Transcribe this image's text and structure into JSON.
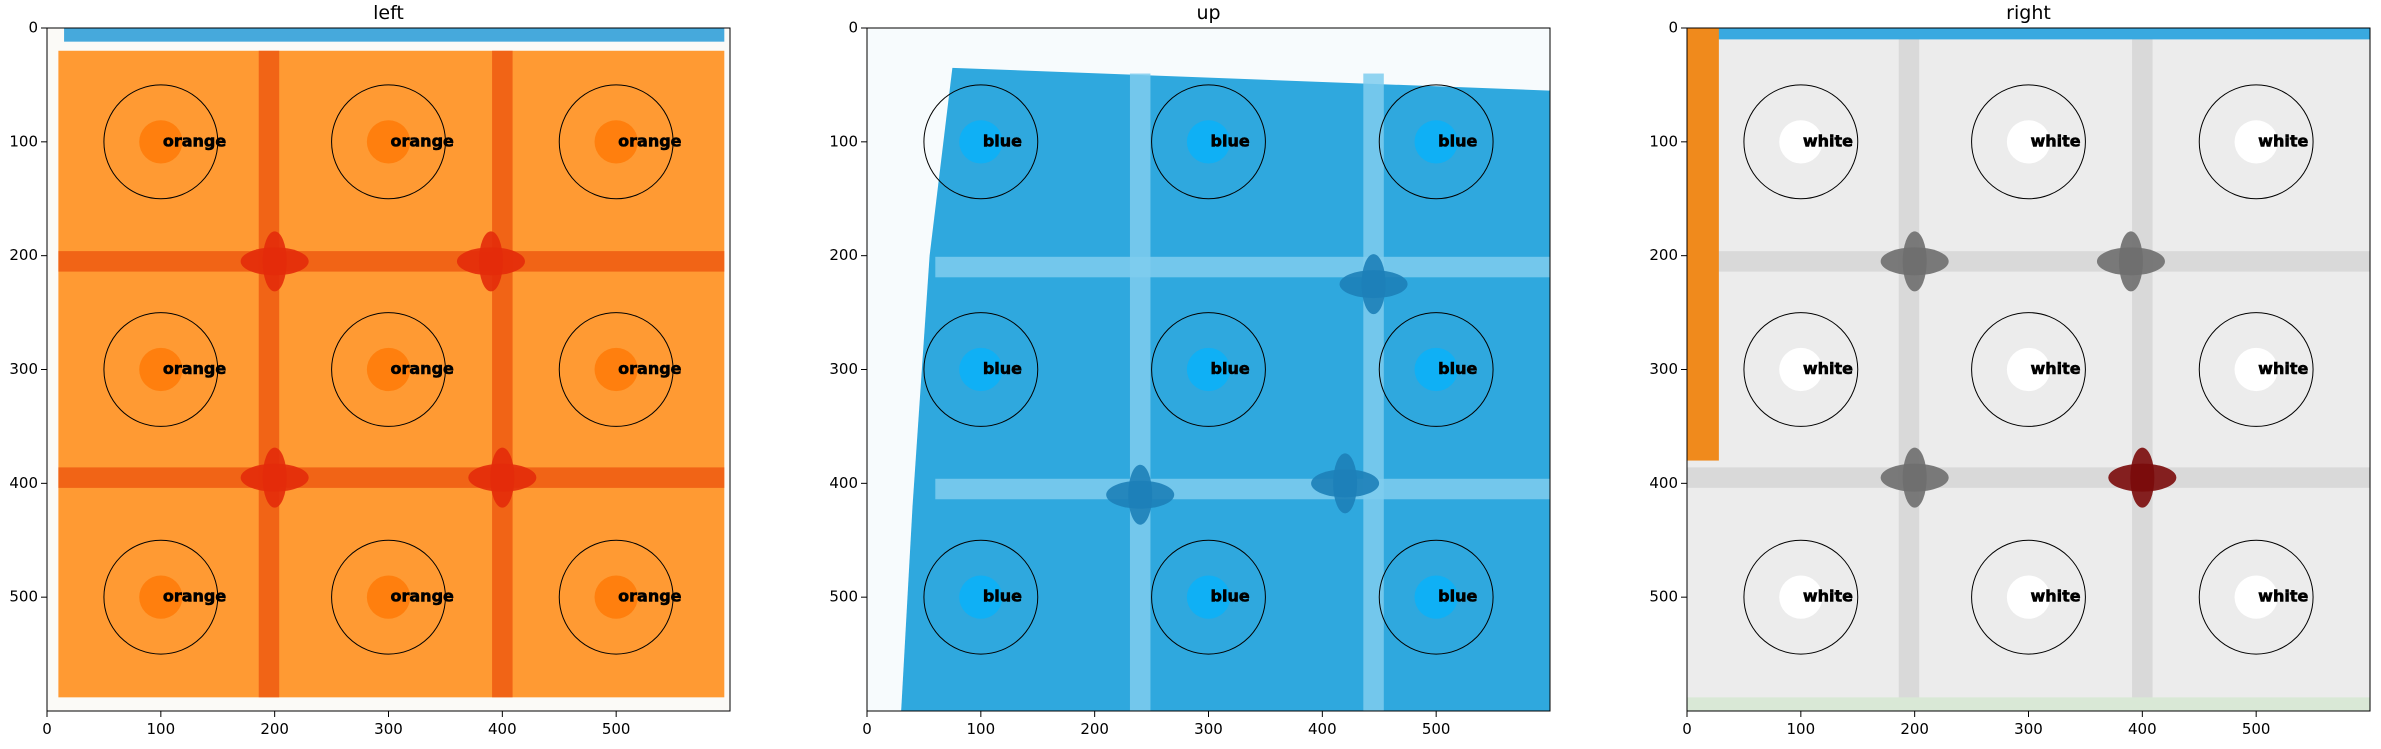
{
  "chart_data": [
    {
      "type": "image",
      "title": "left",
      "xlim": [
        0,
        600
      ],
      "ylim": [
        600,
        0
      ],
      "xticks": [
        0,
        100,
        200,
        300,
        400,
        500
      ],
      "yticks": [
        0,
        100,
        200,
        300,
        400,
        500
      ],
      "xtick_labels": [
        "0",
        "100",
        "200",
        "300",
        "400",
        "500"
      ],
      "ytick_labels": [
        "0",
        "100",
        "200",
        "300",
        "400",
        "500"
      ],
      "tile_color": "#ff9a33",
      "seam_color": "#ee5a12",
      "crack_color": "#e32b0a",
      "background": "#fbfaf7",
      "sample_points": [
        {
          "x": 100,
          "y": 100,
          "label": "orange",
          "color": "#ff7f0e",
          "circle_radius": 50
        },
        {
          "x": 300,
          "y": 100,
          "label": "orange",
          "color": "#ff7f0e",
          "circle_radius": 50
        },
        {
          "x": 500,
          "y": 100,
          "label": "orange",
          "color": "#ff7f0e",
          "circle_radius": 50
        },
        {
          "x": 100,
          "y": 300,
          "label": "orange",
          "color": "#ff7f0e",
          "circle_radius": 50
        },
        {
          "x": 300,
          "y": 300,
          "label": "orange",
          "color": "#ff7f0e",
          "circle_radius": 50
        },
        {
          "x": 500,
          "y": 300,
          "label": "orange",
          "color": "#ff7f0e",
          "circle_radius": 50
        },
        {
          "x": 100,
          "y": 500,
          "label": "orange",
          "color": "#ff7f0e",
          "circle_radius": 50
        },
        {
          "x": 300,
          "y": 500,
          "label": "orange",
          "color": "#ff7f0e",
          "circle_radius": 50
        },
        {
          "x": 500,
          "y": 500,
          "label": "orange",
          "color": "#ff7f0e",
          "circle_radius": 50
        }
      ]
    },
    {
      "type": "image",
      "title": "up",
      "xlim": [
        0,
        600
      ],
      "ylim": [
        600,
        0
      ],
      "xticks": [
        0,
        100,
        200,
        300,
        400,
        500
      ],
      "yticks": [
        0,
        100,
        200,
        300,
        400,
        500
      ],
      "xtick_labels": [
        "0",
        "100",
        "200",
        "300",
        "400",
        "500"
      ],
      "ytick_labels": [
        "0",
        "100",
        "200",
        "300",
        "400",
        "500"
      ],
      "tile_color": "#2fa8de",
      "seam_color": "#7fcdee",
      "crack_color": "#1d7fb8",
      "background": "#f7fbfd",
      "sample_points": [
        {
          "x": 100,
          "y": 100,
          "label": "blue",
          "color": "#0fb0f5",
          "circle_radius": 50
        },
        {
          "x": 300,
          "y": 100,
          "label": "blue",
          "color": "#0fb0f5",
          "circle_radius": 50
        },
        {
          "x": 500,
          "y": 100,
          "label": "blue",
          "color": "#0fb0f5",
          "circle_radius": 50
        },
        {
          "x": 100,
          "y": 300,
          "label": "blue",
          "color": "#0fb0f5",
          "circle_radius": 50
        },
        {
          "x": 300,
          "y": 300,
          "label": "blue",
          "color": "#0fb0f5",
          "circle_radius": 50
        },
        {
          "x": 500,
          "y": 300,
          "label": "blue",
          "color": "#0fb0f5",
          "circle_radius": 50
        },
        {
          "x": 100,
          "y": 500,
          "label": "blue",
          "color": "#0fb0f5",
          "circle_radius": 50
        },
        {
          "x": 300,
          "y": 500,
          "label": "blue",
          "color": "#0fb0f5",
          "circle_radius": 50
        },
        {
          "x": 500,
          "y": 500,
          "label": "blue",
          "color": "#0fb0f5",
          "circle_radius": 50
        }
      ]
    },
    {
      "type": "image",
      "title": "right",
      "xlim": [
        0,
        600
      ],
      "ylim": [
        600,
        0
      ],
      "xticks": [
        0,
        100,
        200,
        300,
        400,
        500
      ],
      "yticks": [
        0,
        100,
        200,
        300,
        400,
        500
      ],
      "xtick_labels": [
        "0",
        "100",
        "200",
        "300",
        "400",
        "500"
      ],
      "ytick_labels": [
        "0",
        "100",
        "200",
        "300",
        "400",
        "500"
      ],
      "tile_color": "#ececec",
      "seam_color": "#d6d6d6",
      "crack_color": "#6e6e6e",
      "accent_color": "#7a0a0a",
      "edge_color": "#f08a1c",
      "top_strip_color": "#39a9e0",
      "background": "#f4f4f4",
      "sample_points": [
        {
          "x": 100,
          "y": 100,
          "label": "white",
          "color": "#ffffff",
          "circle_radius": 50
        },
        {
          "x": 300,
          "y": 100,
          "label": "white",
          "color": "#ffffff",
          "circle_radius": 50
        },
        {
          "x": 500,
          "y": 100,
          "label": "white",
          "color": "#ffffff",
          "circle_radius": 50
        },
        {
          "x": 100,
          "y": 300,
          "label": "white",
          "color": "#ffffff",
          "circle_radius": 50
        },
        {
          "x": 300,
          "y": 300,
          "label": "white",
          "color": "#ffffff",
          "circle_radius": 50
        },
        {
          "x": 500,
          "y": 300,
          "label": "white",
          "color": "#ffffff",
          "circle_radius": 50
        },
        {
          "x": 100,
          "y": 500,
          "label": "white",
          "color": "#ffffff",
          "circle_radius": 50
        },
        {
          "x": 300,
          "y": 500,
          "label": "white",
          "color": "#ffffff",
          "circle_radius": 50
        },
        {
          "x": 500,
          "y": 500,
          "label": "white",
          "color": "#ffffff",
          "circle_radius": 50
        }
      ]
    }
  ]
}
